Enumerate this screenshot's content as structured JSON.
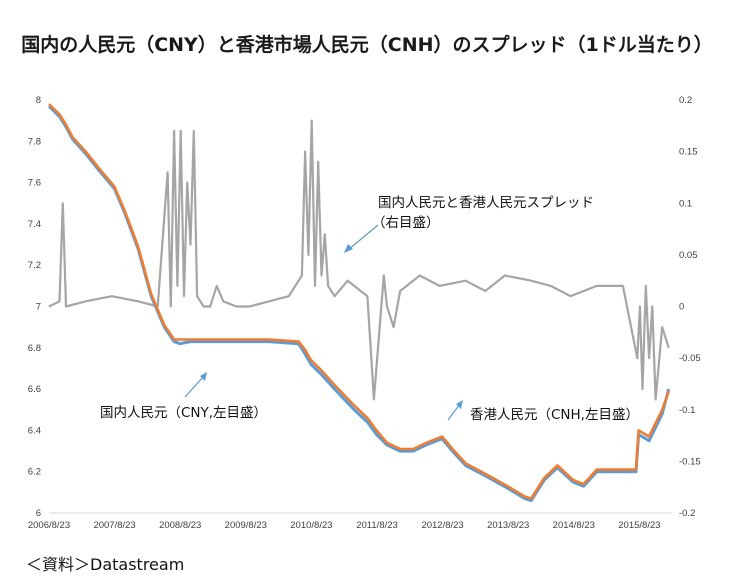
{
  "chart_data": {
    "type": "line",
    "title": "国内の人民元（CNY）と香港市場人民元（CNH）のスプレッド（1ドル当たり）",
    "source": "＜資料＞Datastream",
    "x_ticks": [
      "2006/8/23",
      "2007/8/23",
      "2008/8/23",
      "2009/8/23",
      "2010/8/23",
      "2011/8/23",
      "2012/8/23",
      "2013/8/23",
      "2014/8/23",
      "2015/8/23"
    ],
    "y_left": {
      "ticks": [
        "8",
        "7.8",
        "7.6",
        "7.4",
        "7.2",
        "7",
        "6.8",
        "6.6",
        "6.4",
        "6.2",
        "6"
      ],
      "ylim": [
        6,
        8
      ]
    },
    "y_right": {
      "ticks": [
        "0.2",
        "0.15",
        "0.1",
        "0.05",
        "0",
        "-0.05",
        "-0.1",
        "-0.15",
        "-0.2"
      ],
      "ylim": [
        -0.2,
        0.2
      ]
    },
    "annotations": [
      {
        "text": "国内人民元と香港人民元スプレッド",
        "text2": "（右目盛）"
      },
      {
        "text": "国内人民元（CNY,左目盛）"
      },
      {
        "text": "香港人民元（CNH,左目盛）"
      }
    ],
    "series": [
      {
        "name": "国内人民元（CNY,左目盛）",
        "axis": "left",
        "color": "#5b9bd5",
        "x": [
          2006.64,
          2006.8,
          2006.9,
          2007.0,
          2007.2,
          2007.4,
          2007.64,
          2007.8,
          2008.0,
          2008.2,
          2008.4,
          2008.55,
          2008.64,
          2008.8,
          2009.0,
          2009.64,
          2010.0,
          2010.45,
          2010.55,
          2010.64,
          2010.8,
          2011.0,
          2011.3,
          2011.5,
          2011.64,
          2011.8,
          2012.0,
          2012.2,
          2012.4,
          2012.64,
          2012.8,
          2013.0,
          2013.3,
          2013.64,
          2013.9,
          2014.0,
          2014.2,
          2014.4,
          2014.64,
          2014.8,
          2015.0,
          2015.2,
          2015.6,
          2015.64,
          2015.8,
          2016.0,
          2016.1
        ],
        "y": [
          7.97,
          7.92,
          7.87,
          7.81,
          7.74,
          7.66,
          7.57,
          7.45,
          7.28,
          7.05,
          6.9,
          6.83,
          6.82,
          6.83,
          6.83,
          6.83,
          6.83,
          6.82,
          6.77,
          6.72,
          6.67,
          6.6,
          6.5,
          6.44,
          6.38,
          6.33,
          6.3,
          6.3,
          6.33,
          6.36,
          6.3,
          6.23,
          6.18,
          6.12,
          6.07,
          6.06,
          6.16,
          6.22,
          6.15,
          6.13,
          6.2,
          6.2,
          6.2,
          6.38,
          6.35,
          6.48,
          6.6
        ]
      },
      {
        "name": "香港人民元（CNH,左目盛）",
        "axis": "left",
        "color": "#ed7d31",
        "x": [
          2006.64,
          2006.8,
          2006.9,
          2007.0,
          2007.2,
          2007.4,
          2007.64,
          2007.8,
          2008.0,
          2008.2,
          2008.4,
          2008.55,
          2008.64,
          2008.8,
          2009.0,
          2009.64,
          2010.0,
          2010.45,
          2010.55,
          2010.64,
          2010.8,
          2011.0,
          2011.3,
          2011.5,
          2011.64,
          2011.8,
          2012.0,
          2012.2,
          2012.4,
          2012.64,
          2012.8,
          2013.0,
          2013.3,
          2013.64,
          2013.9,
          2014.0,
          2014.2,
          2014.4,
          2014.64,
          2014.8,
          2015.0,
          2015.2,
          2015.6,
          2015.64,
          2015.8,
          2016.0,
          2016.1
        ],
        "y": [
          7.98,
          7.93,
          7.88,
          7.82,
          7.75,
          7.67,
          7.58,
          7.46,
          7.29,
          7.06,
          6.91,
          6.84,
          6.84,
          6.84,
          6.84,
          6.84,
          6.84,
          6.83,
          6.79,
          6.74,
          6.69,
          6.62,
          6.52,
          6.46,
          6.4,
          6.34,
          6.31,
          6.31,
          6.34,
          6.37,
          6.31,
          6.24,
          6.19,
          6.13,
          6.08,
          6.07,
          6.17,
          6.23,
          6.16,
          6.14,
          6.21,
          6.21,
          6.21,
          6.4,
          6.37,
          6.5,
          6.59
        ]
      },
      {
        "name": "国内人民元と香港人民元スプレッド（右目盛）",
        "axis": "right",
        "color": "#a5a5a5",
        "x": [
          2006.64,
          2006.8,
          2006.85,
          2006.9,
          2007.2,
          2007.6,
          2008.0,
          2008.3,
          2008.45,
          2008.5,
          2008.55,
          2008.6,
          2008.65,
          2008.7,
          2008.75,
          2008.8,
          2008.85,
          2008.9,
          2009.0,
          2009.1,
          2009.2,
          2009.3,
          2009.5,
          2009.7,
          2010.0,
          2010.3,
          2010.5,
          2010.55,
          2010.6,
          2010.65,
          2010.7,
          2010.75,
          2010.8,
          2010.85,
          2010.9,
          2011.0,
          2011.2,
          2011.5,
          2011.6,
          2011.75,
          2011.8,
          2011.9,
          2012.0,
          2012.3,
          2012.6,
          2013.0,
          2013.3,
          2013.6,
          2014.0,
          2014.3,
          2014.6,
          2015.0,
          2015.4,
          2015.62,
          2015.66,
          2015.7,
          2015.75,
          2015.8,
          2015.85,
          2015.9,
          2016.0,
          2016.1
        ],
        "y": [
          0.0,
          0.005,
          0.1,
          0.0,
          0.005,
          0.01,
          0.005,
          0.0,
          0.13,
          0.0,
          0.17,
          0.02,
          0.17,
          0.01,
          0.12,
          0.06,
          0.17,
          0.01,
          0.0,
          0.0,
          0.02,
          0.005,
          0.0,
          0.0,
          0.005,
          0.01,
          0.03,
          0.15,
          0.05,
          0.18,
          0.02,
          0.14,
          0.03,
          0.07,
          0.02,
          0.01,
          0.025,
          0.01,
          -0.09,
          0.03,
          0.0,
          -0.02,
          0.015,
          0.03,
          0.02,
          0.025,
          0.015,
          0.03,
          0.025,
          0.02,
          0.01,
          0.02,
          0.02,
          -0.05,
          0.0,
          -0.08,
          0.02,
          -0.05,
          0.0,
          -0.09,
          -0.02,
          -0.04
        ]
      }
    ]
  }
}
